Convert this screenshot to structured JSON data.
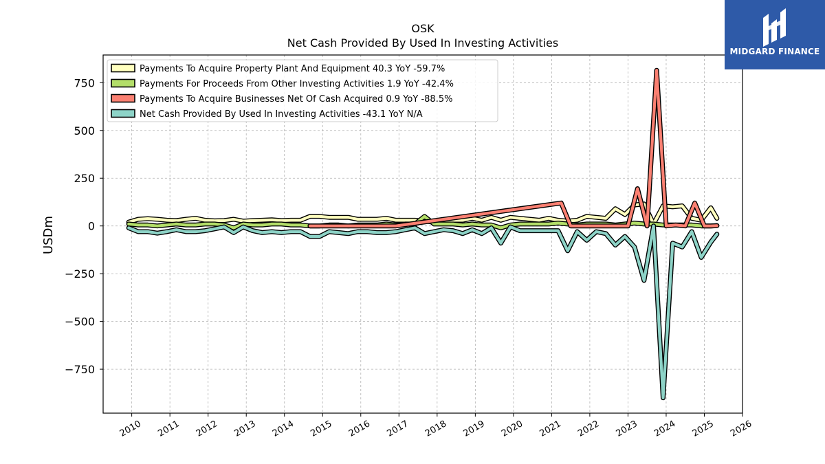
{
  "chart_data": {
    "type": "line",
    "title": "OSK",
    "subtitle": "Net Cash Provided By Used In Investing Activities",
    "xlabel": "",
    "ylabel": "USDm",
    "xlim": [
      2009.25,
      2026
    ],
    "ylim": [
      -980,
      895
    ],
    "x_ticks": [
      2010,
      2011,
      2012,
      2013,
      2014,
      2015,
      2016,
      2017,
      2018,
      2019,
      2020,
      2021,
      2022,
      2023,
      2024,
      2025,
      2026
    ],
    "y_ticks": [
      -750,
      -500,
      -250,
      0,
      250,
      500,
      750
    ],
    "y_tick_labels": [
      "−750",
      "−500",
      "−250",
      "0",
      "250",
      "500",
      "750"
    ],
    "grid": true,
    "legend_position": "top-left",
    "series": [
      {
        "name": "Payments To Acquire Property Plant And Equipment  40.3 YoY -59.7%",
        "color": "#ffffbf",
        "x": [
          2009.92,
          2010.17,
          2010.42,
          2010.67,
          2010.92,
          2011.17,
          2011.42,
          2011.67,
          2011.92,
          2012.17,
          2012.42,
          2012.67,
          2012.92,
          2013.17,
          2013.42,
          2013.67,
          2013.92,
          2014.17,
          2014.42,
          2014.67,
          2014.92,
          2015.17,
          2015.42,
          2015.67,
          2015.92,
          2016.17,
          2016.42,
          2016.67,
          2016.92,
          2017.17,
          2017.42,
          2017.67,
          2017.92,
          2018.17,
          2018.42,
          2018.67,
          2018.92,
          2019.17,
          2019.42,
          2019.67,
          2019.92,
          2020.17,
          2020.42,
          2020.67,
          2020.92,
          2021.17,
          2021.42,
          2021.67,
          2021.92,
          2022.17,
          2022.42,
          2022.67,
          2022.92,
          2023.17,
          2023.42,
          2023.67,
          2023.92,
          2024.17,
          2024.42,
          2024.67,
          2024.92,
          2025.17,
          2025.33
        ],
        "y": [
          20,
          35,
          38,
          35,
          30,
          28,
          35,
          40,
          30,
          27,
          28,
          35,
          25,
          28,
          30,
          32,
          28,
          30,
          30,
          50,
          50,
          45,
          45,
          45,
          35,
          35,
          35,
          40,
          30,
          30,
          30,
          25,
          20,
          30,
          30,
          30,
          40,
          30,
          45,
          30,
          45,
          40,
          35,
          30,
          40,
          30,
          25,
          30,
          50,
          45,
          40,
          90,
          60,
          110,
          115,
          10,
          105,
          100,
          105,
          40,
          30,
          95,
          40
        ]
      },
      {
        "name": "Payments For Proceeds From Other Investing Activities  1.9 YoY -42.4%",
        "color": "#b3de69",
        "x": [
          2009.92,
          2010.17,
          2010.42,
          2010.67,
          2010.92,
          2011.17,
          2011.42,
          2011.67,
          2011.92,
          2012.17,
          2012.42,
          2012.67,
          2012.92,
          2013.17,
          2013.42,
          2013.67,
          2013.92,
          2014.17,
          2014.42,
          2014.67,
          2014.92,
          2015.17,
          2015.42,
          2015.67,
          2015.92,
          2016.17,
          2016.42,
          2016.67,
          2016.92,
          2017.17,
          2017.42,
          2017.67,
          2017.92,
          2018.17,
          2018.42,
          2018.67,
          2018.92,
          2019.17,
          2019.42,
          2019.67,
          2019.92,
          2020.17,
          2020.42,
          2020.67,
          2020.92,
          2021.17,
          2021.42,
          2021.67,
          2021.92,
          2022.17,
          2022.42,
          2022.67,
          2022.92,
          2023.17,
          2023.42,
          2023.67,
          2023.92,
          2024.17,
          2024.42,
          2024.67,
          2024.92,
          2025.17,
          2025.33
        ],
        "y": [
          10,
          5,
          5,
          0,
          5,
          10,
          5,
          5,
          10,
          10,
          5,
          -10,
          10,
          5,
          5,
          10,
          10,
          5,
          5,
          0,
          0,
          5,
          5,
          0,
          5,
          5,
          5,
          10,
          5,
          10,
          10,
          50,
          10,
          10,
          10,
          5,
          10,
          5,
          5,
          -10,
          5,
          10,
          10,
          10,
          10,
          15,
          10,
          5,
          10,
          10,
          10,
          5,
          10,
          15,
          10,
          10,
          5,
          5,
          5,
          5,
          0,
          0,
          2
        ]
      },
      {
        "name": "Payments To Acquire Businesses Net Of Cash Acquired  0.9 YoY -88.5%",
        "color": "#fb8072",
        "x": [
          2014.67,
          2014.92,
          2015.17,
          2015.42,
          2015.67,
          2015.92,
          2016.17,
          2016.42,
          2016.67,
          2016.92,
          2021.25,
          2021.5,
          2021.75,
          2022,
          2022.25,
          2022.5,
          2022.75,
          2023,
          2023.25,
          2023.5,
          2023.75,
          2024,
          2024.25,
          2024.5,
          2024.75,
          2025,
          2025.17,
          2025.33
        ],
        "y": [
          0,
          0,
          0,
          0,
          0,
          0,
          0,
          0,
          0,
          0,
          120,
          0,
          0,
          0,
          0,
          0,
          0,
          0,
          195,
          0,
          815,
          0,
          5,
          0,
          120,
          0,
          0,
          1
        ]
      },
      {
        "name": "Net Cash Provided By Used In Investing Activities  -43.1 YoY N/A",
        "color": "#8dd3c7",
        "x": [
          2009.92,
          2010.17,
          2010.42,
          2010.67,
          2010.92,
          2011.17,
          2011.42,
          2011.67,
          2011.92,
          2012.17,
          2012.42,
          2012.67,
          2012.92,
          2013.17,
          2013.42,
          2013.67,
          2013.92,
          2014.17,
          2014.42,
          2014.67,
          2014.92,
          2015.17,
          2015.42,
          2015.67,
          2015.92,
          2016.17,
          2016.42,
          2016.67,
          2016.92,
          2017.17,
          2017.42,
          2017.67,
          2017.92,
          2018.17,
          2018.42,
          2018.67,
          2018.92,
          2019.17,
          2019.42,
          2019.67,
          2019.92,
          2020.17,
          2020.42,
          2020.67,
          2020.92,
          2021.17,
          2021.42,
          2021.67,
          2021.92,
          2022.17,
          2022.42,
          2022.67,
          2022.92,
          2023.17,
          2023.42,
          2023.67,
          2023.92,
          2024.17,
          2024.42,
          2024.67,
          2024.92,
          2025.17,
          2025.33
        ],
        "y": [
          -10,
          -30,
          -30,
          -38,
          -30,
          -20,
          -30,
          -30,
          -25,
          -15,
          -5,
          -35,
          -5,
          -25,
          -35,
          -30,
          -35,
          -30,
          -30,
          -55,
          -55,
          -30,
          -35,
          -40,
          -30,
          -30,
          -35,
          -35,
          -30,
          -20,
          -10,
          -40,
          -30,
          -20,
          -25,
          -40,
          -20,
          -40,
          -10,
          -90,
          -5,
          -25,
          -25,
          -25,
          -25,
          -25,
          -130,
          -30,
          -75,
          -30,
          -40,
          -100,
          -55,
          -110,
          -285,
          0,
          -900,
          -90,
          -110,
          -30,
          -165,
          -85,
          -43
        ]
      }
    ]
  },
  "brand": {
    "name": "MIDGARD FINANCE",
    "color": "#2e5aa8"
  }
}
